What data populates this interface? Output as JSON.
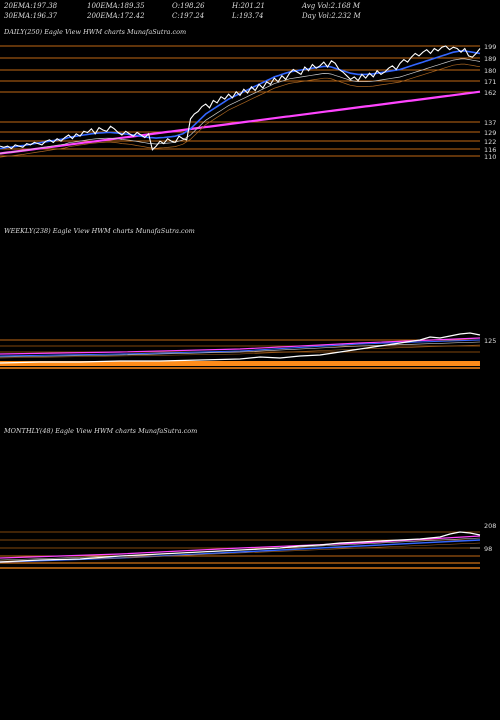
{
  "header": {
    "row1": [
      {
        "label": "20EMA:",
        "value": "197.38"
      },
      {
        "label": "100EMA:",
        "value": "189.35"
      },
      {
        "label": "O:",
        "value": "198.26"
      },
      {
        "label": "H:",
        "value": "201.21"
      },
      {
        "label": "Avg Vol:",
        "value": "2.168  M"
      }
    ],
    "row2": [
      {
        "label": "30EMA:",
        "value": "196.37"
      },
      {
        "label": "200EMA:",
        "value": "172.42"
      },
      {
        "label": "C:",
        "value": "197.24"
      },
      {
        "label": "L:",
        "value": "193.74"
      },
      {
        "label": "Day Vol:",
        "value": "2.232  M"
      }
    ]
  },
  "chart_data": [
    {
      "type": "line",
      "label": "DAILY(250) Eagle  View  HWM charts MunafaSutra.com",
      "y_ticks": [
        199,
        189,
        180,
        171,
        162,
        137,
        129,
        122,
        116,
        110
      ],
      "price": [
        118,
        117,
        118,
        116,
        119,
        118,
        117,
        120,
        119,
        121,
        120,
        119,
        122,
        123,
        121,
        124,
        122,
        125,
        127,
        124,
        128,
        126,
        130,
        129,
        132,
        128,
        133,
        131,
        130,
        134,
        132,
        129,
        127,
        130,
        128,
        126,
        129,
        127,
        125,
        128,
        115,
        118,
        122,
        120,
        124,
        122,
        121,
        126,
        124,
        123,
        140,
        144,
        146,
        150,
        152,
        149,
        155,
        153,
        158,
        156,
        160,
        157,
        162,
        159,
        164,
        161,
        166,
        163,
        168,
        165,
        170,
        168,
        173,
        170,
        175,
        172,
        177,
        180,
        178,
        176,
        182,
        179,
        184,
        181,
        183,
        186,
        182,
        187,
        185,
        180,
        178,
        175,
        172,
        174,
        171,
        176,
        173,
        177,
        174,
        179,
        176,
        178,
        181,
        183,
        180,
        185,
        188,
        186,
        190,
        193,
        191,
        194,
        196,
        193,
        197,
        195,
        198,
        199,
        196,
        198,
        197,
        194,
        197,
        191,
        190,
        193,
        197
      ],
      "ema_fast": [
        116,
        116.5,
        117,
        117.2,
        117.6,
        118,
        118.4,
        119,
        119.5,
        120,
        120.5,
        121,
        121.5,
        122,
        122.5,
        123,
        123.5,
        124,
        125,
        125.5,
        126,
        126.5,
        127,
        127.5,
        128,
        128.3,
        128.6,
        128.8,
        129,
        129,
        128.8,
        128.5,
        128,
        127.8,
        127.5,
        127,
        126.5,
        126,
        125.5,
        125,
        124.8,
        124.5,
        124.8,
        125,
        125.3,
        125.6,
        126,
        127,
        128,
        130,
        132,
        135,
        138,
        141,
        144,
        146,
        148,
        150,
        152,
        154,
        156,
        157.5,
        159,
        160.5,
        162,
        163.5,
        165,
        166.5,
        168,
        169.5,
        171,
        172.5,
        174,
        175,
        176,
        177,
        178,
        178.5,
        179,
        179.5,
        180,
        180.5,
        181,
        181.5,
        182,
        182.5,
        182.5,
        182,
        181,
        180,
        179,
        178,
        177,
        176.5,
        176,
        176,
        176,
        176.2,
        176.5,
        177,
        177.5,
        178,
        178.5,
        179,
        179.5,
        180,
        181,
        182,
        183,
        184,
        185,
        186,
        187,
        188,
        189,
        190,
        191,
        192,
        193,
        194,
        194.5,
        195,
        195,
        194.5,
        194,
        193.5,
        193
      ]
    },
    {
      "type": "line",
      "label": "WEEKLY(238) Eagle  View  HWM charts MunafaSutra.com",
      "y_ticks": [
        125
      ]
    },
    {
      "type": "line",
      "label": "MONTHLY(48) Eagle  View  HWM charts MunafaSutra.com",
      "y_ticks": [
        208,
        98
      ]
    }
  ]
}
